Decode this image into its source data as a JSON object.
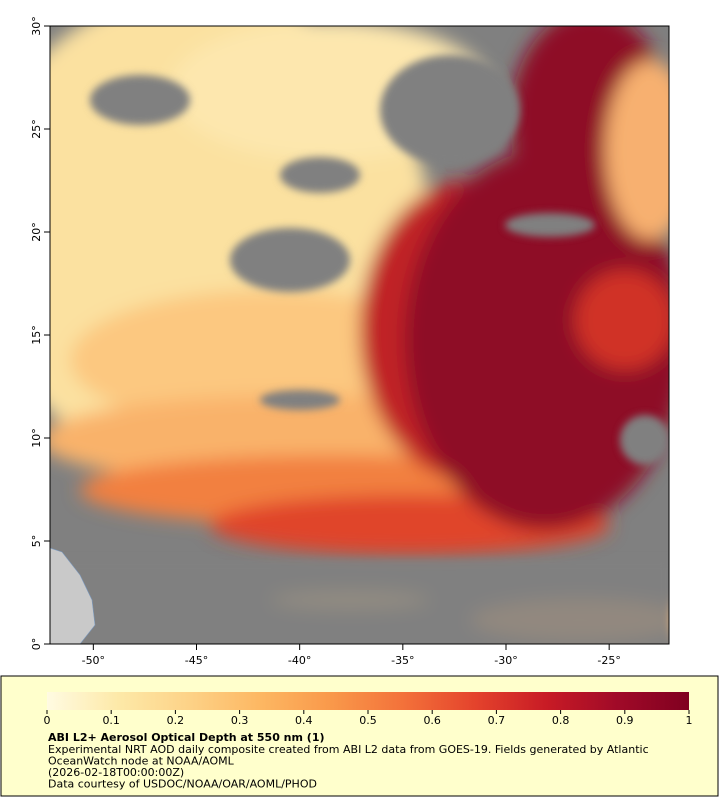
{
  "map": {
    "lon_range": [
      -52.1,
      -22.1
    ],
    "lat_range": [
      0,
      30
    ],
    "lon_ticks": [
      {
        "value": -50,
        "label": "-50°"
      },
      {
        "value": -45,
        "label": "-45°"
      },
      {
        "value": -40,
        "label": "-40°"
      },
      {
        "value": -35,
        "label": "-35°"
      },
      {
        "value": -30,
        "label": "-30°"
      },
      {
        "value": -25,
        "label": "-25°"
      }
    ],
    "lat_ticks": [
      {
        "value": 0,
        "label": "0°"
      },
      {
        "value": 5,
        "label": "5°"
      },
      {
        "value": 10,
        "label": "10°"
      },
      {
        "value": 15,
        "label": "15°"
      },
      {
        "value": 20,
        "label": "20°"
      },
      {
        "value": 25,
        "label": "25°"
      },
      {
        "value": 30,
        "label": "30°"
      }
    ]
  },
  "colorbar": {
    "range": [
      0,
      1
    ],
    "ticks": [
      0,
      0.1,
      0.2,
      0.3,
      0.4,
      0.5,
      0.6,
      0.7,
      0.8,
      0.9,
      1
    ],
    "colors": [
      "#fffbe2",
      "#fde9a8",
      "#fdd287",
      "#fdb762",
      "#f9984a",
      "#f3713a",
      "#e4432c",
      "#c81b25",
      "#a00a28",
      "#800020"
    ]
  },
  "caption": {
    "title": "ABI L2+ Aerosol Optical Depth at 550 nm (1)",
    "lines": [
      "Experimental NRT AOD daily composite created from ABI L2 data from GOES-19. Fields generated by Atlantic",
      "OceanWatch node at NOAA/AOML",
      "(2026-02-18T00:00:00Z)",
      "Data courtesy of USDOC/NOAA/OAR/AOML/PHOD"
    ]
  }
}
